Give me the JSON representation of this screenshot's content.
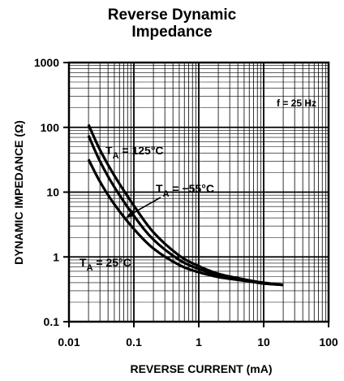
{
  "chart_data": {
    "type": "line",
    "title": [
      "Reverse Dynamic",
      "Impedance"
    ],
    "xlabel": "REVERSE CURRENT (mA)",
    "ylabel": "DYNAMIC IMPEDANCE (Ω)",
    "xscale": "log",
    "yscale": "log",
    "xlim": [
      0.01,
      100
    ],
    "ylim": [
      0.1,
      1000
    ],
    "x_tick_labels": [
      "0.01",
      "0.1",
      "1",
      "10",
      "100"
    ],
    "x_ticks": [
      0.01,
      0.1,
      1,
      10,
      100
    ],
    "y_tick_labels": [
      "1000",
      "100",
      "10",
      "1",
      "0.1"
    ],
    "y_ticks": [
      1000,
      100,
      10,
      1,
      0.1
    ],
    "grid": true,
    "annotations": [
      {
        "text": "f = 25 Hz"
      },
      {
        "text": "T",
        "subscript": "A",
        "suffix": " = 125°C"
      },
      {
        "text": "T",
        "subscript": "A",
        "suffix": " = −55°C"
      },
      {
        "text": "T",
        "subscript": "A",
        "suffix": " = 25°C"
      }
    ],
    "series": [
      {
        "x": [
          0.02,
          0.03,
          0.05,
          0.1,
          0.2,
          0.5,
          1,
          2,
          5,
          10,
          20
        ],
        "y": [
          110,
          45,
          18,
          6.2,
          2.4,
          1.05,
          0.72,
          0.55,
          0.45,
          0.4,
          0.37
        ]
      },
      {
        "x": [
          0.02,
          0.03,
          0.05,
          0.1,
          0.2,
          0.5,
          1,
          2,
          5,
          10,
          20
        ],
        "y": [
          75,
          30,
          12,
          4.3,
          1.85,
          0.9,
          0.65,
          0.52,
          0.44,
          0.39,
          0.37
        ]
      },
      {
        "x": [
          0.02,
          0.03,
          0.05,
          0.1,
          0.2,
          0.5,
          1,
          2,
          5,
          10,
          20
        ],
        "y": [
          32,
          14.5,
          6.5,
          2.7,
          1.35,
          0.75,
          0.58,
          0.49,
          0.43,
          0.39,
          0.37
        ]
      }
    ]
  }
}
